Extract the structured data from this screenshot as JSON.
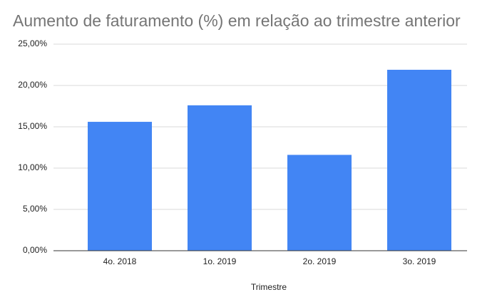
{
  "chart_data": {
    "type": "bar",
    "title": "Aumento de faturamento (%) em relação ao trimestre anterior",
    "x_label": "Trimestre",
    "categories": [
      "4o. 2018",
      "1o. 2019",
      "2o. 2019",
      "3o. 2019"
    ],
    "values": [
      15.6,
      17.6,
      11.6,
      21.9
    ],
    "color": "#4285f4",
    "ylim": [
      0,
      25
    ],
    "yticks": [
      {
        "value": 0,
        "label": "0,00%"
      },
      {
        "value": 5,
        "label": "5,00%"
      },
      {
        "value": 10,
        "label": "10,00%"
      },
      {
        "value": 15,
        "label": "15,00%"
      },
      {
        "value": 20,
        "label": "20,00%"
      },
      {
        "value": 25,
        "label": "25,00%"
      }
    ],
    "grid": true
  }
}
